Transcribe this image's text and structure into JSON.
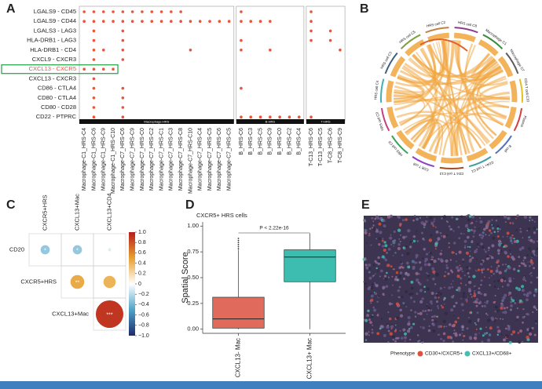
{
  "panels": {
    "a": "A",
    "b": "B",
    "c": "C",
    "d": "D",
    "e": "E"
  },
  "dotplot": {
    "color": "#e8553d",
    "highlight_row": 6,
    "highlight_color": "#2fa84f",
    "rows": [
      {
        "label": "LGALS9 - CD45",
        "cols": [
          0,
          1,
          2,
          3,
          4,
          5,
          6,
          7,
          8,
          9,
          10,
          16,
          23
        ]
      },
      {
        "label": "LGALS9 - CD44",
        "cols": [
          0,
          1,
          2,
          3,
          4,
          5,
          6,
          7,
          8,
          9,
          10,
          11,
          12,
          13,
          14,
          15,
          16,
          17,
          18,
          19,
          23
        ]
      },
      {
        "label": "LGALS3 - LAG3",
        "cols": [
          1,
          4,
          23,
          25
        ]
      },
      {
        "label": "HLA-DRB1 - LAG3",
        "cols": [
          1,
          4,
          16,
          23,
          25
        ]
      },
      {
        "label": "HLA-DRB1 - CD4",
        "cols": [
          1,
          2,
          4,
          11,
          16,
          19,
          26
        ]
      },
      {
        "label": "CXCL9 - CXCR3",
        "cols": [
          1,
          4
        ]
      },
      {
        "label": "CXCL13 - CXCR5",
        "cols": [
          0,
          1,
          2,
          3
        ]
      },
      {
        "label": "CXCL13 - CXCR3",
        "cols": [
          1
        ]
      },
      {
        "label": "CD86 - CTLA4",
        "cols": [
          1,
          4,
          16
        ]
      },
      {
        "label": "CD80 - CTLA4",
        "cols": [
          1,
          4
        ]
      },
      {
        "label": "CD80 - CD28",
        "cols": [
          1,
          4
        ]
      },
      {
        "label": "CD22 - PTPRC",
        "cols": [
          1,
          4,
          16,
          17,
          18,
          19,
          20,
          21,
          22,
          23
        ]
      }
    ],
    "groups": [
      {
        "name": "Macrophage-HRS",
        "columns": [
          "Macrophage-C1_HRS-C4",
          "Macrophage-C1_HRS-C6",
          "Macrophage-C1_HRS-C9",
          "Macrophage-C1_HRS-C10",
          "Macrophage-C7_HRS-C6",
          "Macrophage-C7_HRS-C9",
          "Macrophage-C7_HRS-C0",
          "Macrophage-C7_HRS-C2",
          "Macrophage-C7_HRS-C1",
          "Macrophage-C7_HRS-C3",
          "Macrophage-C7_HRS-C8",
          "Macrophage-C7_HRS-C10",
          "Macrophage-C7_HRS-C4",
          "Macrophage-C7_HRS-C5",
          "Macrophage-C7_HRS-C6",
          "Macrophage-C7_HRS-C5"
        ]
      },
      {
        "name": "B-HRS",
        "columns": [
          "B_HRS-C6",
          "B_HRS-C3",
          "B_HRS-C5",
          "B_HRS-C9",
          "B_HRS-C0",
          "B_HRS-C2",
          "B_HRS-C4"
        ]
      },
      {
        "name": "T-HRS",
        "columns": [
          "T-C13_HRS-C6",
          "T-C13_HRS-C5",
          "T-C8_HRS-C6",
          "T-C8_HRS-C9"
        ]
      }
    ]
  },
  "chord": {
    "segments": [
      {
        "label": "HRS cell C8",
        "color": "#8b3a8b"
      },
      {
        "label": "Macrophage C1",
        "color": "#3a8b3a"
      },
      {
        "label": "Macrophage C7",
        "color": "#5a5a5a"
      },
      {
        "label": "CD4 T cell C10",
        "color": "#e0c020"
      },
      {
        "label": "Plasma",
        "color": "#d04040"
      },
      {
        "label": "B cell",
        "color": "#5070c0"
      },
      {
        "label": "CD4+ T cell C1",
        "color": "#40a0a0"
      },
      {
        "label": "CD4 T cell C13",
        "color": "#a05020"
      },
      {
        "label": "CD8 T cell",
        "color": "#9040c0"
      },
      {
        "label": "HRS cell C6",
        "color": "#40a060"
      },
      {
        "label": "HRS cell C9",
        "color": "#c04080"
      },
      {
        "label": "HRS cell C4",
        "color": "#40b0b0"
      },
      {
        "label": "HRS cell C3",
        "color": "#406080"
      },
      {
        "label": "HRS cell C5",
        "color": "#80a040"
      },
      {
        "label": "HRS cell C2",
        "color": "#c08040"
      }
    ]
  },
  "corr": {
    "columns": [
      "CXCR5+HRS",
      "CXCL13+Mac",
      "CXCL13+CD4"
    ],
    "rows": [
      {
        "name": "CD20",
        "values": [
          -0.3,
          -0.3,
          -0.1
        ],
        "value_labels": [
          "*",
          "*",
          null
        ]
      },
      {
        "name": "CXCR5+HRS",
        "values": [
          0.45,
          0.4
        ],
        "value_labels": [
          "**",
          null
        ]
      },
      {
        "name": "CXCL13+Mac",
        "values": [
          0.9
        ],
        "value_labels": [
          "***"
        ]
      }
    ],
    "lim": [
      -1,
      1
    ],
    "colors": [
      "#1f2a6e",
      "#4fa3c9",
      "#ffffff",
      "#e8a030",
      "#b71c1c"
    ],
    "ticks": [
      {
        "value": 1,
        "label": "1.0"
      },
      {
        "value": 0.8,
        "label": "0.8"
      },
      {
        "value": 0.6,
        "label": "0.6"
      },
      {
        "value": 0.4,
        "label": "0.4"
      },
      {
        "value": 0.2,
        "label": "0.2"
      },
      0,
      {
        "value": -0.2,
        "label": "−0.2"
      },
      {
        "value": -0.4,
        "label": "−0.4"
      },
      {
        "value": -0.6,
        "label": "−0.6"
      },
      {
        "value": -0.8,
        "label": "−0.8"
      },
      {
        "value": -1,
        "label": "−1.0"
      }
    ]
  },
  "boxplot": {
    "type": "box",
    "title": "CXCR5+ HRS cells",
    "ylabel": "Spatial Score",
    "annotation": "P < 2.22e-16",
    "ylim": [
      -0.04,
      1.04
    ],
    "yticks": [
      {
        "value": 0,
        "label": "0.00"
      },
      {
        "value": 0.25,
        "label": "0.25"
      },
      {
        "value": 0.5,
        "label": "0.50"
      },
      {
        "value": 0.75,
        "label": "0.75"
      },
      {
        "value": 1,
        "label": "1.00"
      }
    ],
    "boxes": [
      {
        "name": "CXCL13- Mac",
        "color": "#e06b5c",
        "min": 0,
        "q1": 0.01,
        "median": 0.1,
        "q3": 0.31,
        "max": 0.77,
        "outliers": [
          0.78,
          0.8,
          0.82,
          0.84,
          0.86,
          0.88
        ]
      },
      {
        "name": "CXCL13+ Mac",
        "color": "#3dbdb0",
        "min": 0,
        "q1": 0.46,
        "median": 0.7,
        "q3": 0.77,
        "max": 0.93,
        "outliers": []
      }
    ]
  },
  "image_legend": {
    "title": "Phenotype",
    "items": [
      {
        "label": "CD30+/CXCR5+",
        "color": "#e0503c"
      },
      {
        "label": "CXCL13+/CD68+",
        "color": "#45c0b0"
      }
    ]
  }
}
